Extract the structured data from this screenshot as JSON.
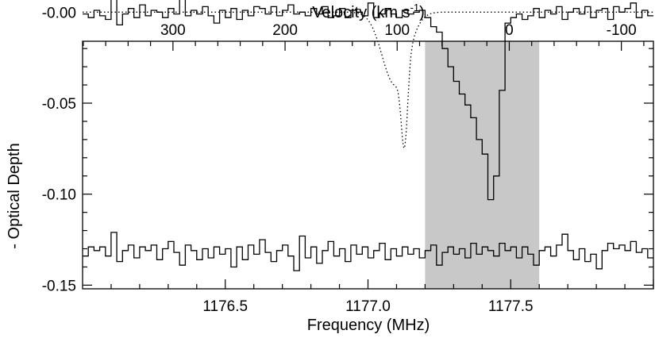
{
  "chart_data": {
    "type": "line",
    "title": "",
    "xlabel": "Frequency (MHz)",
    "ylabel": "- Optical Depth",
    "top_axis": {
      "label_prefix": "Velocity (km s",
      "label_sup": "-1",
      "label_suffix": ")",
      "ticks": [
        "300",
        "200",
        "100",
        "0",
        "-100"
      ],
      "tick_values": [
        300,
        200,
        100,
        0,
        -100
      ]
    },
    "xlim": [
      1176.0,
      1178.0
    ],
    "ylim": [
      -0.152,
      -0.016
    ],
    "x_ticks": [
      1176.5,
      1177.0,
      1177.5
    ],
    "x_tick_labels": [
      "1176.5",
      "1177.0",
      "1177.5"
    ],
    "y_ticks": [
      0.0,
      -0.05,
      -0.1,
      -0.15
    ],
    "y_tick_labels": [
      "-0.00",
      "-0.05",
      "-0.10",
      "-0.15"
    ],
    "grid": false,
    "shaded_region": {
      "x": [
        1177.2,
        1177.6
      ],
      "color": "#c8c8c8"
    },
    "series": [
      {
        "style": "step",
        "color": "#000000",
        "x0": 1176.0,
        "dx": 0.02,
        "values": [
          -0.001,
          -0.003,
          0.001,
          -0.002,
          -0.004,
          0.009,
          -0.007,
          -0.001,
          0.002,
          -0.003,
          0.004,
          -0.002,
          0.001,
          0.0,
          -0.003,
          0.002,
          -0.001,
          0.009,
          -0.002,
          0.001,
          -0.001,
          0.003,
          -0.002,
          -0.006,
          0.001,
          -0.003,
          0.002,
          -0.004,
          0.001,
          -0.002,
          0.003,
          0.002,
          -0.001,
          0.003,
          -0.002,
          0.001,
          0.004,
          -0.001,
          0.0,
          -0.002,
          0.002,
          -0.001,
          0.003,
          -0.003,
          -0.002,
          0.002,
          -0.003,
          0.001,
          0.0,
          -0.002,
          0.005,
          -0.003,
          -0.001,
          0.002,
          -0.001,
          -0.003,
          0.001,
          -0.001,
          0.0,
          0.001,
          -0.003,
          -0.008,
          -0.011,
          -0.02,
          -0.03,
          -0.038,
          -0.045,
          -0.051,
          -0.058,
          -0.07,
          -0.078,
          -0.103,
          -0.09,
          -0.043,
          -0.006,
          -0.003,
          -0.001,
          -0.004,
          -0.002,
          0.002,
          -0.003,
          0.001,
          -0.001,
          0.003,
          -0.004,
          0.0,
          0.002,
          -0.001,
          0.003,
          -0.003,
          0.001,
          0.002,
          -0.004,
          0.003,
          0.0,
          0.002,
          0.005,
          -0.003,
          0.001,
          -0.002
        ]
      },
      {
        "style": "dotted",
        "color": "#000000",
        "components": [
          {
            "center": 1177.095,
            "amplitude": -0.04,
            "sigma": 0.045
          },
          {
            "center": 1177.128,
            "amplitude": -0.044,
            "sigma": 0.011
          }
        ]
      },
      {
        "style": "step",
        "color": "#000000",
        "x0": 1176.0,
        "dx": 0.02,
        "values": [
          -0.134,
          -0.129,
          -0.131,
          -0.129,
          -0.134,
          -0.121,
          -0.137,
          -0.131,
          -0.128,
          -0.135,
          -0.129,
          -0.131,
          -0.128,
          -0.136,
          -0.13,
          -0.126,
          -0.132,
          -0.139,
          -0.128,
          -0.131,
          -0.136,
          -0.13,
          -0.135,
          -0.129,
          -0.133,
          -0.13,
          -0.14,
          -0.129,
          -0.136,
          -0.128,
          -0.133,
          -0.125,
          -0.132,
          -0.137,
          -0.131,
          -0.128,
          -0.134,
          -0.142,
          -0.123,
          -0.135,
          -0.129,
          -0.138,
          -0.131,
          -0.126,
          -0.134,
          -0.13,
          -0.137,
          -0.128,
          -0.133,
          -0.129,
          -0.135,
          -0.131,
          -0.127,
          -0.136,
          -0.13,
          -0.134,
          -0.129,
          -0.133,
          -0.13,
          -0.135,
          -0.131,
          -0.128,
          -0.139,
          -0.132,
          -0.129,
          -0.133,
          -0.13,
          -0.135,
          -0.127,
          -0.133,
          -0.129,
          -0.131,
          -0.134,
          -0.127,
          -0.131,
          -0.129,
          -0.135,
          -0.129,
          -0.133,
          -0.139,
          -0.131,
          -0.129,
          -0.134,
          -0.128,
          -0.122,
          -0.131,
          -0.136,
          -0.13,
          -0.137,
          -0.133,
          -0.141,
          -0.131,
          -0.127,
          -0.13,
          -0.128,
          -0.131,
          -0.126,
          -0.132,
          -0.13,
          -0.135
        ]
      }
    ]
  }
}
